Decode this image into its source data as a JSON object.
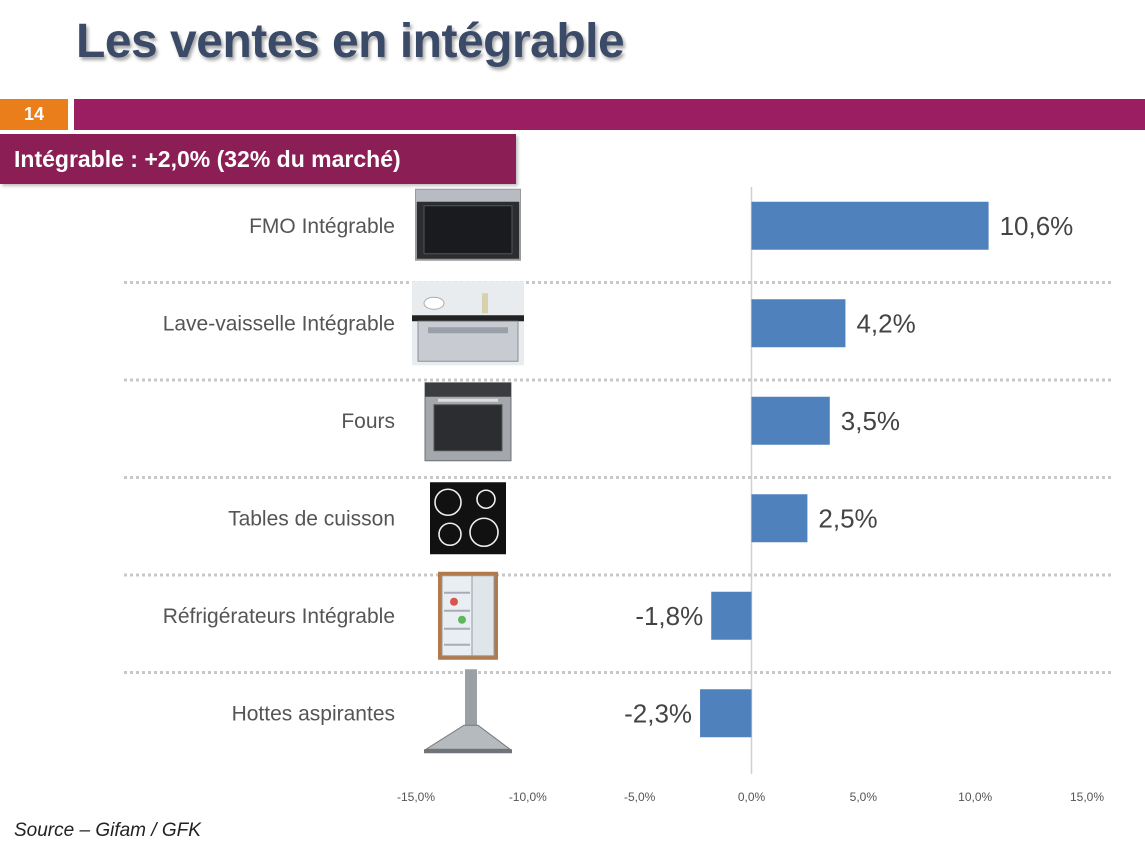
{
  "page": {
    "title": "Les ventes en intégrable",
    "page_number": "14",
    "subtitle": "Intégrable : +2,0% (32% du marché)",
    "source": "Source – Gifam / GFK"
  },
  "colors": {
    "bar": "#4f81bd",
    "title_bar": "#9b1e63",
    "page_badge": "#e97e1b",
    "subtitle_box": "#8b1f55"
  },
  "chart_data": {
    "type": "bar",
    "orientation": "horizontal",
    "categories": [
      "FMO Intégrable",
      "Lave-vaisselle Intégrable",
      "Fours",
      "Tables de cuisson",
      "Réfrigérateurs Intégrable",
      "Hottes aspirantes"
    ],
    "values": [
      10.6,
      4.2,
      3.5,
      2.5,
      -1.8,
      -2.3
    ],
    "value_labels": [
      "10,6%",
      "4,2%",
      "3,5%",
      "2,5%",
      "-1,8%",
      "-2,3%"
    ],
    "category_icons": [
      "microwave-icon",
      "dishwasher-icon",
      "oven-icon",
      "cooktop-icon",
      "fridge-icon",
      "range-hood-icon"
    ],
    "xlim": [
      -15,
      15
    ],
    "ticks": [
      -15,
      -10,
      -5,
      0,
      5,
      10,
      15
    ],
    "tick_labels": [
      "-15,0%",
      "-10,0%",
      "-5,0%",
      "0,0%",
      "5,0%",
      "10,0%",
      "15,0%"
    ],
    "grid": false
  }
}
